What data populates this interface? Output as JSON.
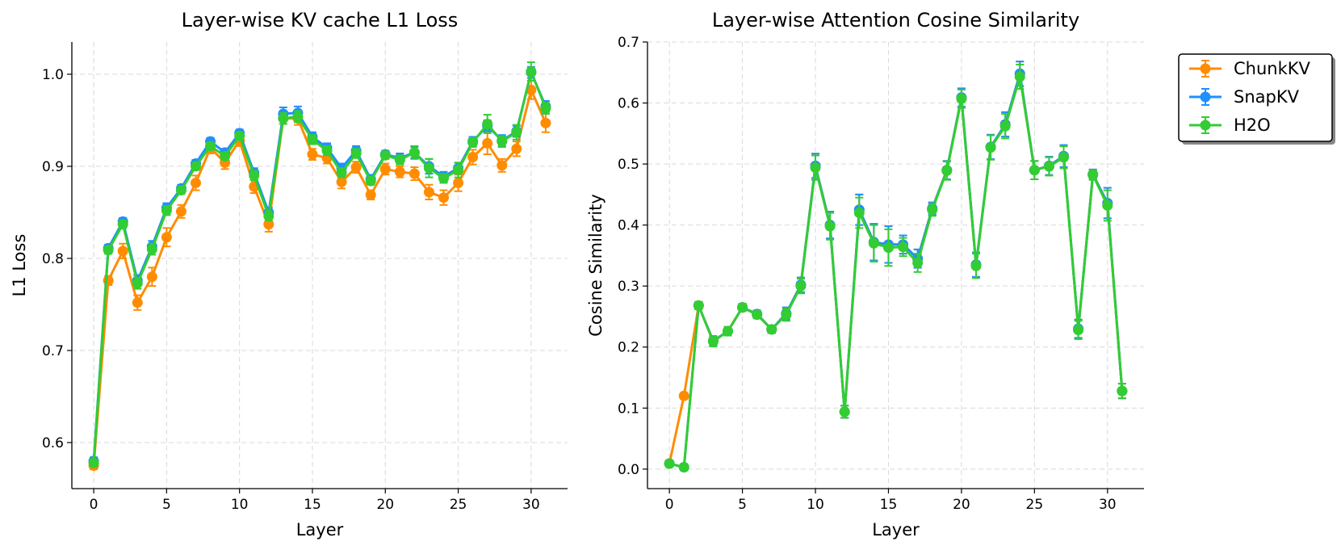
{
  "chart_data": [
    {
      "type": "line",
      "title": "Layer-wise KV cache L1 Loss",
      "xlabel": "Layer",
      "ylabel": "L1 Loss",
      "xlim": [
        -1.5,
        32.5
      ],
      "ylim": [
        0.55,
        1.035
      ],
      "xticks": [
        0,
        5,
        10,
        15,
        20,
        25,
        30
      ],
      "yticks": [
        0.6,
        0.7,
        0.8,
        0.9,
        1.0
      ],
      "ytick_labels": [
        "0.6",
        "0.7",
        "0.8",
        "0.9",
        "1.0"
      ],
      "grid": true,
      "x": [
        0,
        1,
        2,
        3,
        4,
        5,
        6,
        7,
        8,
        9,
        10,
        11,
        12,
        13,
        14,
        15,
        16,
        17,
        18,
        19,
        20,
        21,
        22,
        23,
        24,
        25,
        26,
        27,
        28,
        29,
        30,
        31
      ],
      "series": [
        {
          "name": "ChunkKV",
          "color": "#ff8c00",
          "values": [
            0.575,
            0.776,
            0.808,
            0.752,
            0.78,
            0.823,
            0.851,
            0.882,
            0.92,
            0.904,
            0.928,
            0.878,
            0.837,
            0.952,
            0.952,
            0.913,
            0.909,
            0.883,
            0.899,
            0.869,
            0.897,
            0.894,
            0.892,
            0.872,
            0.866,
            0.882,
            0.91,
            0.925,
            0.901,
            0.919,
            0.983,
            0.947
          ],
          "errors": [
            0.004,
            0.005,
            0.008,
            0.008,
            0.01,
            0.01,
            0.007,
            0.008,
            0.006,
            0.007,
            0.006,
            0.007,
            0.008,
            0.006,
            0.007,
            0.006,
            0.006,
            0.007,
            0.006,
            0.005,
            0.006,
            0.006,
            0.007,
            0.008,
            0.008,
            0.009,
            0.008,
            0.012,
            0.007,
            0.008,
            0.01,
            0.01
          ]
        },
        {
          "name": "SnapKV",
          "color": "#1e90ff",
          "values": [
            0.58,
            0.811,
            0.84,
            0.776,
            0.813,
            0.855,
            0.876,
            0.903,
            0.927,
            0.915,
            0.936,
            0.893,
            0.85,
            0.957,
            0.958,
            0.932,
            0.92,
            0.898,
            0.917,
            0.886,
            0.913,
            0.909,
            0.915,
            0.9,
            0.889,
            0.898,
            0.927,
            0.944,
            0.928,
            0.938,
            1.002,
            0.965
          ],
          "errors": [
            0.004,
            0.004,
            0.004,
            0.006,
            0.006,
            0.005,
            0.004,
            0.004,
            0.004,
            0.004,
            0.004,
            0.005,
            0.005,
            0.007,
            0.007,
            0.005,
            0.005,
            0.005,
            0.005,
            0.004,
            0.004,
            0.005,
            0.006,
            0.008,
            0.005,
            0.006,
            0.005,
            0.006,
            0.006,
            0.006,
            0.006,
            0.006
          ]
        },
        {
          "name": "H2O",
          "color": "#32cd32",
          "values": [
            0.578,
            0.809,
            0.837,
            0.773,
            0.81,
            0.852,
            0.874,
            0.9,
            0.922,
            0.911,
            0.933,
            0.89,
            0.846,
            0.952,
            0.954,
            0.929,
            0.917,
            0.893,
            0.914,
            0.884,
            0.912,
            0.907,
            0.915,
            0.898,
            0.887,
            0.896,
            0.926,
            0.946,
            0.927,
            0.937,
            1.003,
            0.963
          ],
          "errors": [
            0.004,
            0.004,
            0.004,
            0.006,
            0.006,
            0.005,
            0.004,
            0.004,
            0.004,
            0.004,
            0.004,
            0.005,
            0.005,
            0.006,
            0.006,
            0.005,
            0.005,
            0.005,
            0.005,
            0.004,
            0.004,
            0.005,
            0.007,
            0.01,
            0.005,
            0.008,
            0.005,
            0.01,
            0.006,
            0.008,
            0.01,
            0.006
          ]
        }
      ]
    },
    {
      "type": "line",
      "title": "Layer-wise Attention Cosine Similarity",
      "xlabel": "Layer",
      "ylabel": "Cosine Similarity",
      "xlim": [
        -1.5,
        32.5
      ],
      "ylim": [
        -0.032,
        0.7
      ],
      "xticks": [
        0,
        5,
        10,
        15,
        20,
        25,
        30
      ],
      "yticks": [
        0.0,
        0.1,
        0.2,
        0.3,
        0.4,
        0.5,
        0.6,
        0.7
      ],
      "ytick_labels": [
        "0.0",
        "0.1",
        "0.2",
        "0.3",
        "0.4",
        "0.5",
        "0.6",
        "0.7"
      ],
      "grid": true,
      "legend_position": "outside-right",
      "x": [
        0,
        1,
        2,
        3,
        4,
        5,
        6,
        7,
        8,
        9,
        10,
        11,
        12,
        13,
        14,
        15,
        16,
        17,
        18,
        19,
        20,
        21,
        22,
        23,
        24,
        25,
        26,
        27,
        28,
        29,
        30,
        31
      ],
      "series": [
        {
          "name": "ChunkKV",
          "color": "#ff8c00",
          "values": [
            0.009,
            0.12,
            0.268,
            0.21,
            0.226,
            0.265,
            0.254,
            0.229,
            0.255,
            0.302,
            0.497,
            0.4,
            0.094,
            0.425,
            0.372,
            0.368,
            0.368,
            0.345,
            0.427,
            0.49,
            0.609,
            0.335,
            0.528,
            0.565,
            0.648,
            0.49,
            0.497,
            0.513,
            0.23,
            0.483,
            0.436,
            0.128
          ],
          "errors": [
            0.005,
            0.005,
            0.006,
            0.008,
            0.007,
            0.006,
            0.006,
            0.006,
            0.01,
            0.012,
            0.02,
            0.022,
            0.01,
            0.025,
            0.03,
            0.03,
            0.015,
            0.015,
            0.01,
            0.015,
            0.015,
            0.02,
            0.02,
            0.02,
            0.02,
            0.015,
            0.015,
            0.018,
            0.015,
            0.008,
            0.025,
            0.012
          ]
        },
        {
          "name": "SnapKV",
          "color": "#1e90ff",
          "values": [
            0.009,
            0.003,
            0.268,
            0.21,
            0.226,
            0.265,
            0.254,
            0.229,
            0.255,
            0.302,
            0.497,
            0.4,
            0.094,
            0.425,
            0.372,
            0.368,
            0.368,
            0.345,
            0.427,
            0.49,
            0.609,
            0.335,
            0.528,
            0.565,
            0.648,
            0.49,
            0.497,
            0.513,
            0.23,
            0.483,
            0.436,
            0.128
          ],
          "errors": [
            0.005,
            0.005,
            0.006,
            0.008,
            0.007,
            0.006,
            0.006,
            0.006,
            0.01,
            0.012,
            0.02,
            0.022,
            0.01,
            0.025,
            0.03,
            0.03,
            0.015,
            0.015,
            0.01,
            0.015,
            0.015,
            0.02,
            0.02,
            0.02,
            0.02,
            0.015,
            0.015,
            0.018,
            0.015,
            0.008,
            0.025,
            0.012
          ]
        },
        {
          "name": "H2O",
          "color": "#32cd32",
          "values": [
            0.009,
            0.003,
            0.268,
            0.209,
            0.226,
            0.265,
            0.253,
            0.229,
            0.253,
            0.3,
            0.494,
            0.398,
            0.094,
            0.42,
            0.37,
            0.363,
            0.364,
            0.338,
            0.425,
            0.489,
            0.607,
            0.333,
            0.527,
            0.562,
            0.643,
            0.49,
            0.496,
            0.511,
            0.228,
            0.482,
            0.432,
            0.128
          ],
          "errors": [
            0.005,
            0.005,
            0.006,
            0.008,
            0.007,
            0.006,
            0.006,
            0.006,
            0.01,
            0.012,
            0.02,
            0.022,
            0.01,
            0.025,
            0.03,
            0.03,
            0.015,
            0.015,
            0.01,
            0.015,
            0.015,
            0.02,
            0.02,
            0.02,
            0.02,
            0.015,
            0.015,
            0.018,
            0.015,
            0.008,
            0.025,
            0.012
          ]
        }
      ]
    }
  ]
}
